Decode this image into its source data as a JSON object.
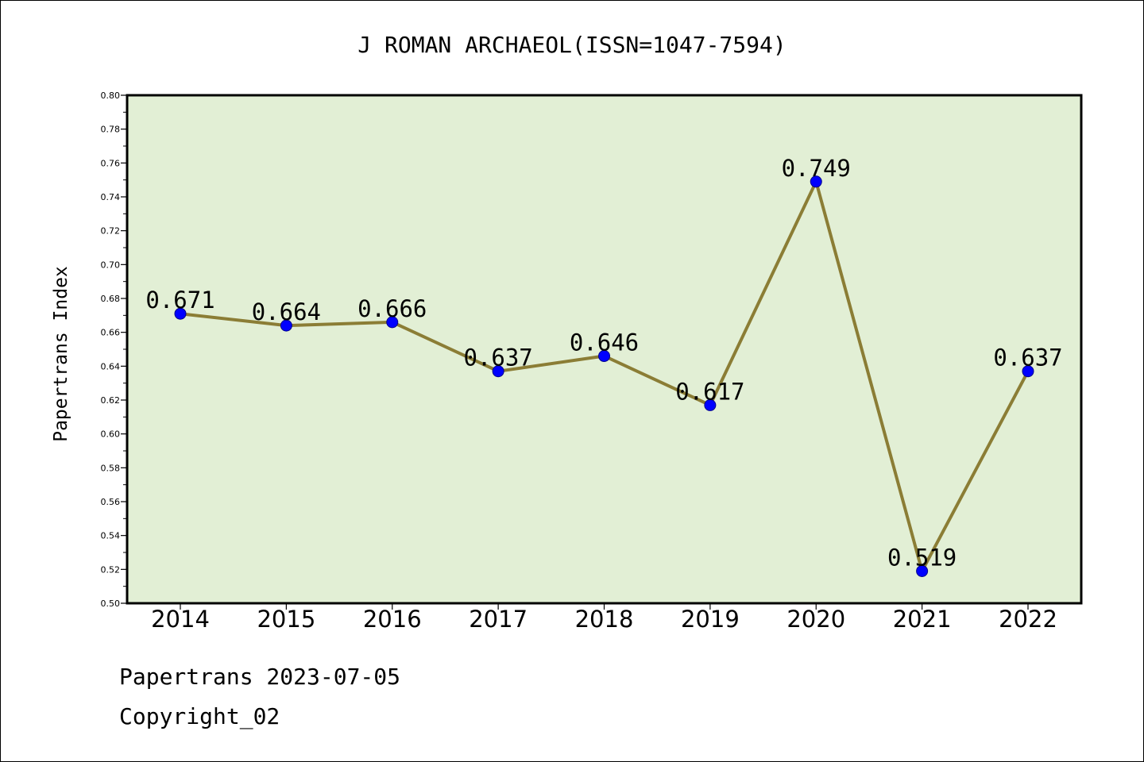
{
  "chart_data": {
    "type": "line",
    "title": "J ROMAN ARCHAEOL(ISSN=1047-7594)",
    "xlabel": "",
    "ylabel": "Papertrans Index",
    "categories": [
      "2014",
      "2015",
      "2016",
      "2017",
      "2018",
      "2019",
      "2020",
      "2021",
      "2022"
    ],
    "values": [
      0.671,
      0.664,
      0.666,
      0.637,
      0.646,
      0.617,
      0.749,
      0.519,
      0.637
    ],
    "data_labels": [
      "0.671",
      "0.664",
      "0.666",
      "0.637",
      "0.646",
      "0.617",
      "0.749",
      "0.519",
      "0.637"
    ],
    "ylim": [
      0.5,
      0.8
    ],
    "ytick_labels": [
      "0.50",
      "0.52",
      "0.54",
      "0.56",
      "0.58",
      "0.60",
      "0.62",
      "0.64",
      "0.66",
      "0.68",
      "0.70",
      "0.72",
      "0.74",
      "0.76",
      "0.78",
      "0.80"
    ],
    "grid": false,
    "colors": {
      "plot_background": "#e2efd5",
      "line": "#8b7d35",
      "marker": "#0000ff"
    }
  },
  "footer": {
    "source_line": "Papertrans 2023-07-05",
    "copyright_line": "Copyright_02"
  }
}
